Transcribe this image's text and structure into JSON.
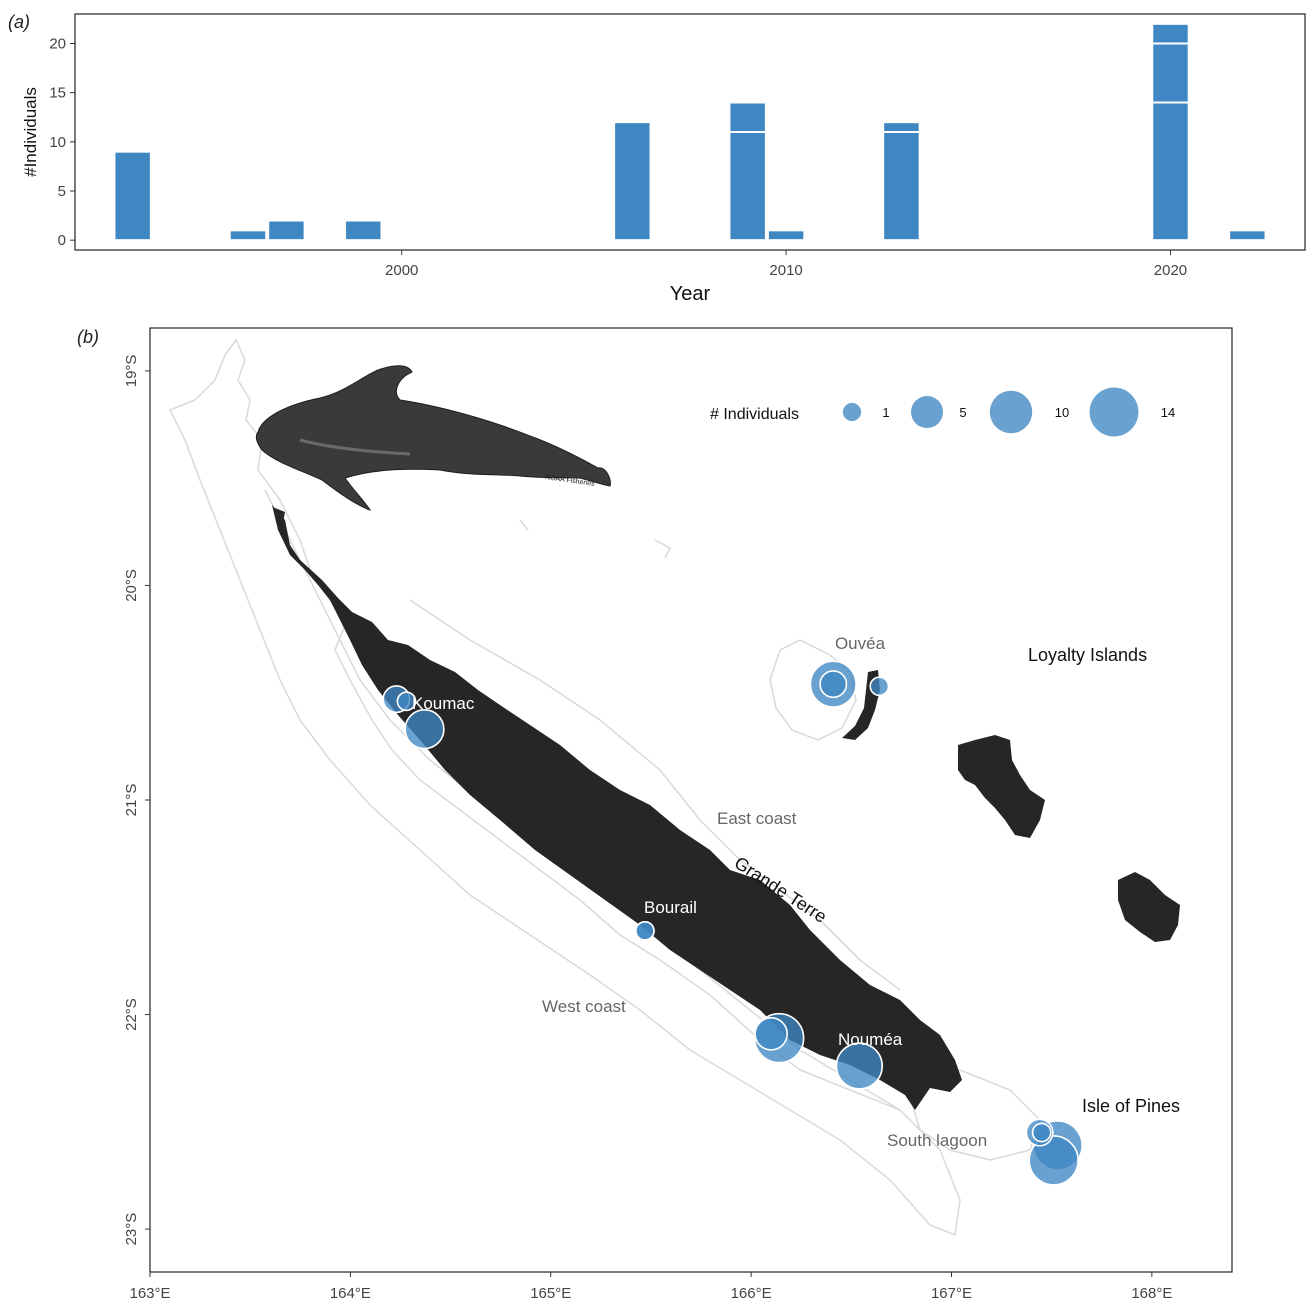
{
  "panel_a": {
    "letter": "(a)"
  },
  "panel_b": {
    "letter": "(b)"
  },
  "chart_data": [
    {
      "type": "bar",
      "stacked": true,
      "xlabel": "Year",
      "ylabel": "#Individuals",
      "xlim": [
        1991.5,
        2023.5
      ],
      "ylim": [
        -1,
        23
      ],
      "x_ticks": [
        2000,
        2010,
        2020
      ],
      "y_ticks": [
        0,
        5,
        10,
        15,
        20
      ],
      "grid": false,
      "bars": [
        {
          "year": 1993,
          "segments": [
            9
          ]
        },
        {
          "year": 1996,
          "segments": [
            1
          ]
        },
        {
          "year": 1997,
          "segments": [
            2
          ]
        },
        {
          "year": 1999,
          "segments": [
            2
          ]
        },
        {
          "year": 2006,
          "segments": [
            12
          ]
        },
        {
          "year": 2009,
          "segments": [
            11,
            3
          ]
        },
        {
          "year": 2010,
          "segments": [
            1
          ]
        },
        {
          "year": 2013,
          "segments": [
            11,
            1
          ]
        },
        {
          "year": 2020,
          "segments": [
            14,
            6,
            2
          ]
        },
        {
          "year": 2022,
          "segments": [
            1
          ]
        }
      ],
      "color": "#3f87c3"
    },
    {
      "type": "scatter",
      "subtype": "bubble-map",
      "xlim": [
        163,
        168.4
      ],
      "ylim": [
        -23.2,
        -18.8
      ],
      "x_ticks": [
        {
          "v": 163,
          "label": "163°E"
        },
        {
          "v": 164,
          "label": "164°E"
        },
        {
          "v": 165,
          "label": "165°E"
        },
        {
          "v": 166,
          "label": "166°E"
        },
        {
          "v": 167,
          "label": "167°E"
        },
        {
          "v": 168,
          "label": "168°E"
        }
      ],
      "y_ticks": [
        {
          "v": -19,
          "label": "19°S"
        },
        {
          "v": -20,
          "label": "20°S"
        },
        {
          "v": -21,
          "label": "21°S"
        },
        {
          "v": -22,
          "label": "22°S"
        },
        {
          "v": -23,
          "label": "23°S"
        }
      ],
      "legend": {
        "title": "# Individuals",
        "placement": "top-right",
        "items": [
          {
            "value": 1,
            "label": "1"
          },
          {
            "value": 5,
            "label": "5"
          },
          {
            "value": 10,
            "label": "10"
          },
          {
            "value": 14,
            "label": "14"
          }
        ]
      },
      "points": [
        {
          "lon": 164.23,
          "lat": -20.53,
          "n": 3
        },
        {
          "lon": 164.28,
          "lat": -20.54,
          "n": 1
        },
        {
          "lon": 164.37,
          "lat": -20.67,
          "n": 8
        },
        {
          "lon": 166.41,
          "lat": -20.46,
          "n": 12
        },
        {
          "lon": 166.41,
          "lat": -20.46,
          "n": 3
        },
        {
          "lon": 166.64,
          "lat": -20.47,
          "n": 1
        },
        {
          "lon": 165.47,
          "lat": -21.61,
          "n": 1
        },
        {
          "lon": 165.47,
          "lat": -21.61,
          "n": 1
        },
        {
          "lon": 166.14,
          "lat": -22.11,
          "n": 14
        },
        {
          "lon": 166.1,
          "lat": -22.09,
          "n": 5
        },
        {
          "lon": 166.54,
          "lat": -22.24,
          "n": 12
        },
        {
          "lon": 167.53,
          "lat": -22.61,
          "n": 14
        },
        {
          "lon": 167.51,
          "lat": -22.68,
          "n": 14
        },
        {
          "lon": 167.44,
          "lat": -22.55,
          "n": 3
        },
        {
          "lon": 167.45,
          "lat": -22.55,
          "n": 1
        }
      ],
      "labels": {
        "koumac": "Koumac",
        "bourail": "Bourail",
        "noumea": "Nouméa",
        "ouvea": "Ouvéa",
        "loyalty": "Loyalty Islands",
        "east_coast": "East coast",
        "grande_terre": "Grande Terre",
        "west_coast": "West coast",
        "south_lagoon": "South lagoon",
        "isle_of_pines": "Isle of Pines"
      },
      "image_credit": "NOAA Fisheries",
      "color": "#3f87c3"
    }
  ]
}
